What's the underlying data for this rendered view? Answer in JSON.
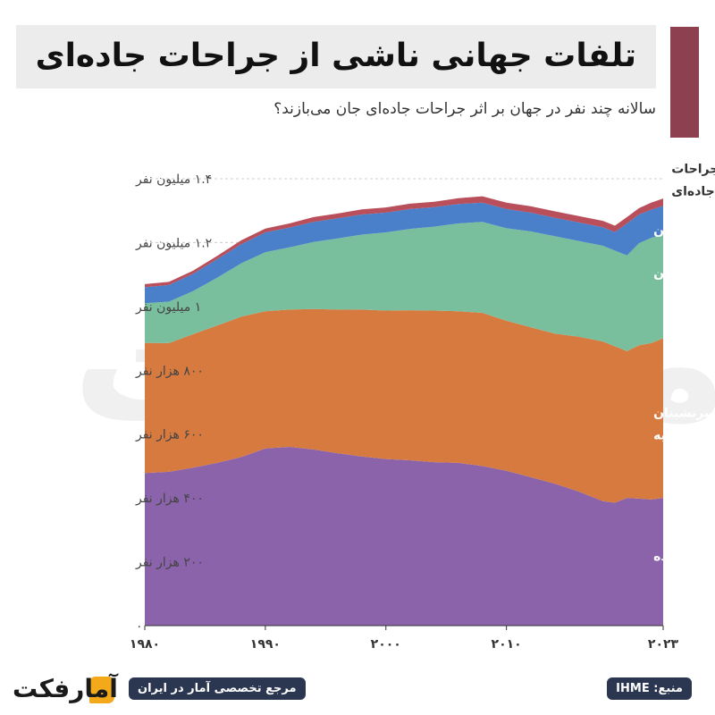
{
  "header": {
    "title": "تلفات جهانی ناشی از جراحات جاده‌ای",
    "subtitle": "سالانه چند نفر در جهان بر اثر جراحات جاده‌ای جان می‌بازند؟",
    "accent_color": "#8d4150"
  },
  "footer": {
    "source": "منبع: IHME",
    "tagline": "مرجع تخصصی آمار در ایران",
    "logo_text": "آمارفکت"
  },
  "chart_data": {
    "type": "area",
    "stacked": true,
    "x": [
      1980,
      1982,
      1984,
      1986,
      1988,
      1990,
      1992,
      1994,
      1996,
      1998,
      2000,
      2002,
      2004,
      2006,
      2008,
      2010,
      2012,
      2014,
      2016,
      2018,
      2019,
      2020,
      2021,
      2022,
      2023
    ],
    "xlim": [
      1980,
      2023
    ],
    "ylim": [
      0,
      1400000
    ],
    "x_ticks": [
      1980,
      1990,
      2000,
      2010,
      2023
    ],
    "x_tick_labels": [
      "۱۹۸۰",
      "۱۹۹۰",
      "۲۰۰۰",
      "۲۰۱۰",
      "۲۰۲۳"
    ],
    "y_ticks": [
      0,
      200000,
      400000,
      600000,
      800000,
      1000000,
      1200000,
      1400000
    ],
    "y_tick_labels": [
      "۰",
      "۲۰۰ هزار نفر",
      "۴۰۰ هزار نفر",
      "۶۰۰ هزار نفر",
      "۸۰۰ هزار نفر",
      "۱ میلیون نفر",
      "۱.۲ میلیون نفر",
      "۱.۴ میلیون نفر"
    ],
    "grid": true,
    "series": [
      {
        "name": "عابران پیاده",
        "color": "#8a63ab",
        "values": [
          478000,
          482000,
          495000,
          510000,
          528000,
          555000,
          560000,
          552000,
          540000,
          530000,
          522000,
          518000,
          512000,
          510000,
          500000,
          485000,
          465000,
          445000,
          420000,
          390000,
          385000,
          400000,
          398000,
          395000,
          400000
        ]
      },
      {
        "name": "رانندگان و سرنشینان وسایل نقلیه",
        "color": "#d77a3f",
        "values": [
          408000,
          403000,
          418000,
          430000,
          440000,
          430000,
          430000,
          440000,
          450000,
          460000,
          465000,
          470000,
          475000,
          475000,
          480000,
          470000,
          470000,
          470000,
          485000,
          500000,
          490000,
          460000,
          480000,
          490000,
          500000
        ]
      },
      {
        "name": "موتورسواران",
        "color": "#79bf9e",
        "values": [
          124000,
          130000,
          135000,
          150000,
          167000,
          185000,
          195000,
          210000,
          223000,
          235000,
          245000,
          255000,
          263000,
          275000,
          285000,
          290000,
          300000,
          305000,
          300000,
          300000,
          300000,
          300000,
          320000,
          330000,
          325000
        ]
      },
      {
        "name": "دوچرخه‌سواران",
        "color": "#4a7fca",
        "values": [
          50000,
          52000,
          54000,
          58000,
          60000,
          62000,
          62000,
          63000,
          63000,
          63000,
          62000,
          62000,
          61000,
          61000,
          60000,
          60000,
          59000,
          58000,
          58000,
          58000,
          58000,
          100000,
          90000,
          88000,
          90000
        ]
      },
      {
        "name": "سایر جراحات جاده‌ای",
        "color": "#b84f5a",
        "values": [
          10000,
          10000,
          10000,
          10000,
          12000,
          12000,
          13000,
          15000,
          15000,
          16000,
          16000,
          17000,
          17000,
          18000,
          20000,
          20000,
          20000,
          20000,
          20000,
          20000,
          20000,
          20000,
          20000,
          22000,
          23000
        ]
      }
    ],
    "series_labels": [
      {
        "lines": [
          "عابران پیاده"
        ],
        "color": "#ffffff",
        "x": 2017,
        "y": 205000
      },
      {
        "lines": [
          "رانندگان و سرنشینان",
          "وسایل نقلیه"
        ],
        "color": "#ffffff",
        "x": 2017,
        "y": 620000
      },
      {
        "lines": [
          "موتورسواران"
        ],
        "color": "#ffffff",
        "x": 2017,
        "y": 1090000
      },
      {
        "lines": [
          "دوچرخه‌سواران"
        ],
        "color": "#ffffff",
        "x": 2017,
        "y": 1225000
      },
      {
        "lines": [
          "سایر جراحات",
          "جاده‌ای"
        ],
        "color": "#333333",
        "x": 2018.5,
        "y": 1385000
      }
    ],
    "watermark_text": "آمارفکت"
  }
}
